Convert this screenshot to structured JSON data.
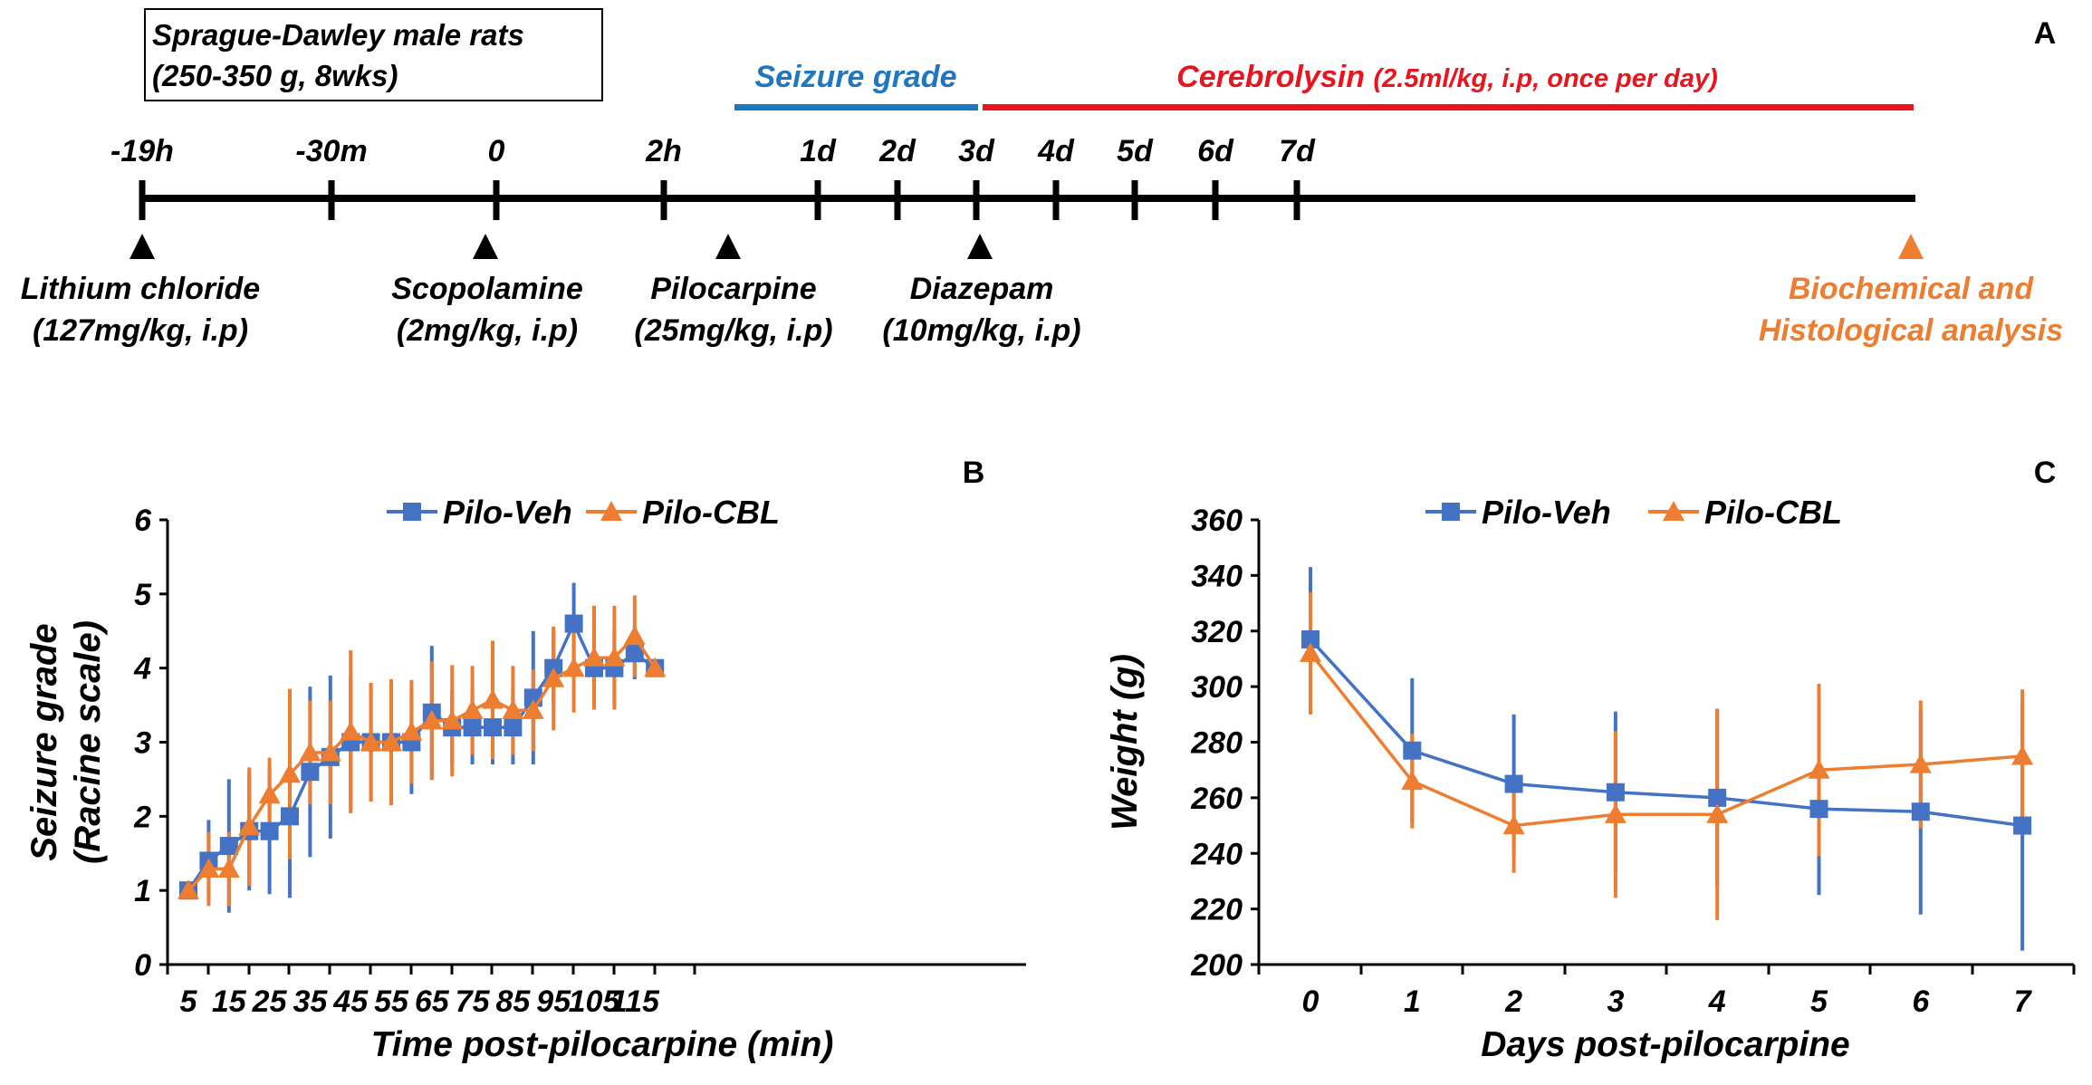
{
  "colors": {
    "veh": "#4472C4",
    "cbl": "#ED7D31",
    "seizure_bar": "#1F77BF",
    "cerebrolysin": "#E8141E",
    "analysis": "#ED7D31",
    "axis": "#000000"
  },
  "panel_a": {
    "label": "A",
    "box_line1": "Sprague-Dawley male rats",
    "box_line2": "(250-350 g, 8wks)",
    "seizure_label": "Seizure grade",
    "cereb_label_main": "Cerebrolysin",
    "cereb_label_dose": "(2.5ml/kg, i.p, once per day)",
    "ticks": [
      "-19h",
      "-30m",
      "0",
      "2h",
      "1d",
      "2d",
      "3d",
      "4d",
      "5d",
      "6d",
      "7d"
    ],
    "events": [
      {
        "name": "Lithium chloride",
        "dose": "(127mg/kg, i.p)"
      },
      {
        "name": "Scopolamine",
        "dose": "(2mg/kg, i.p)"
      },
      {
        "name": "Pilocarpine",
        "dose": "(25mg/kg, i.p)"
      },
      {
        "name": "Diazepam",
        "dose": "(10mg/kg, i.p)"
      },
      {
        "name": "Biochemical and",
        "dose": "Histological analysis"
      }
    ]
  },
  "chart_data": [
    {
      "panel": "B",
      "type": "line",
      "xlabel": "Time post-pilocarpine (min)",
      "ylabel_line1": "Seizure grade",
      "ylabel_line2": "(Racine scale)",
      "ylim": [
        0,
        6
      ],
      "yticks": [
        "0",
        "1",
        "2",
        "3",
        "4",
        "5",
        "6"
      ],
      "x_labels": [
        "5",
        "15",
        "25",
        "35",
        "45",
        "55",
        "65",
        "75",
        "85",
        "95",
        "105",
        "115"
      ],
      "x": [
        5,
        10,
        15,
        20,
        25,
        30,
        35,
        40,
        45,
        50,
        55,
        60,
        65,
        70,
        75,
        80,
        85,
        90,
        95,
        100,
        105,
        110,
        115,
        120
      ],
      "series": [
        {
          "name": "Pilo-Veh",
          "marker": "square",
          "values": [
            1.0,
            1.4,
            1.6,
            1.8,
            1.8,
            2.0,
            2.6,
            2.8,
            3.0,
            3.0,
            3.0,
            3.0,
            3.4,
            3.2,
            3.2,
            3.2,
            3.2,
            3.6,
            4.0,
            4.6,
            4.0,
            4.0,
            4.2,
            4.0
          ],
          "errors": [
            0.0,
            0.55,
            0.9,
            0.8,
            0.85,
            1.1,
            1.15,
            1.1,
            0.9,
            0.8,
            0.8,
            0.7,
            0.9,
            0.5,
            0.5,
            0.5,
            0.5,
            0.9,
            0.5,
            0.55,
            0.5,
            0.5,
            0.35,
            0.0
          ]
        },
        {
          "name": "Pilo-CBL",
          "marker": "triangle",
          "values": [
            1.0,
            1.29,
            1.29,
            1.86,
            2.29,
            2.57,
            2.86,
            2.86,
            3.14,
            3.0,
            3.0,
            3.14,
            3.29,
            3.29,
            3.43,
            3.57,
            3.43,
            3.43,
            3.86,
            4.0,
            4.14,
            4.14,
            4.43,
            4.0
          ],
          "errors": [
            0.0,
            0.5,
            0.5,
            0.8,
            0.5,
            1.15,
            0.7,
            0.7,
            1.1,
            0.8,
            0.85,
            0.7,
            0.8,
            0.75,
            0.6,
            0.8,
            0.6,
            0.55,
            0.7,
            0.6,
            0.7,
            0.7,
            0.55,
            0.0
          ]
        }
      ],
      "legend": "top"
    },
    {
      "panel": "C",
      "type": "line",
      "xlabel": "Days post-pilocarpine",
      "ylabel": "Weight (g)",
      "ylim": [
        200,
        360
      ],
      "yticks": [
        "200",
        "220",
        "240",
        "260",
        "280",
        "300",
        "320",
        "340",
        "360"
      ],
      "x_labels": [
        "0",
        "1",
        "2",
        "3",
        "4",
        "5",
        "6",
        "7"
      ],
      "x": [
        0,
        1,
        2,
        3,
        4,
        5,
        6,
        7
      ],
      "series": [
        {
          "name": "Pilo-Veh",
          "marker": "square",
          "values": [
            317,
            277,
            265,
            262,
            260,
            256,
            255,
            250
          ],
          "errors": [
            26,
            26,
            25,
            29,
            32,
            31,
            37,
            45
          ]
        },
        {
          "name": "Pilo-CBL",
          "marker": "triangle",
          "values": [
            312,
            266,
            250,
            254,
            254,
            270,
            272,
            275
          ],
          "errors": [
            22,
            17,
            17,
            30,
            38,
            31,
            23,
            24
          ]
        }
      ],
      "legend": "top"
    }
  ]
}
